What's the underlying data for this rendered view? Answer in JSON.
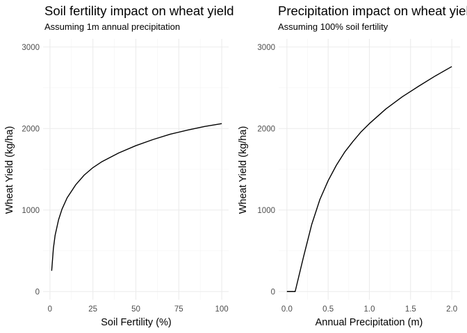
{
  "chart_data": [
    {
      "type": "line",
      "title": "Soil fertility impact on wheat yield",
      "subtitle": "Assuming 1m annual precipitation",
      "xlabel": "Soil Fertility (%)",
      "ylabel": "Wheat Yield (kg/ha)",
      "xlim": [
        -4,
        104
      ],
      "ylim": [
        -100,
        3100
      ],
      "x_ticks": [
        0,
        25,
        50,
        75,
        100
      ],
      "x_tick_labels": [
        "0",
        "25",
        "50",
        "75",
        "100"
      ],
      "y_ticks": [
        0,
        1000,
        2000,
        3000
      ],
      "y_tick_labels": [
        "0",
        "1000",
        "2000",
        "3000"
      ],
      "grid": true,
      "series": [
        {
          "x": [
            1,
            2,
            3,
            5,
            7,
            10,
            15,
            20,
            25,
            30,
            40,
            50,
            60,
            70,
            80,
            90,
            100
          ],
          "y": [
            255,
            530,
            690,
            880,
            1010,
            1150,
            1310,
            1430,
            1520,
            1590,
            1700,
            1790,
            1865,
            1930,
            1980,
            2025,
            2060
          ]
        }
      ]
    },
    {
      "type": "line",
      "title": "Precipitation impact on wheat yield",
      "subtitle": "Assuming 100% soil fertility",
      "xlabel": "Annual Precipitation (m)",
      "ylabel": "Wheat Yield (kg/ha)",
      "xlim": [
        -0.1,
        2.1
      ],
      "ylim": [
        -100,
        3100
      ],
      "x_ticks": [
        0,
        0.5,
        1,
        1.5,
        2
      ],
      "x_tick_labels": [
        "0.0",
        "0.5",
        "1.0",
        "1.5",
        "2.0"
      ],
      "y_ticks": [
        0,
        1000,
        2000,
        3000
      ],
      "y_tick_labels": [
        "0",
        "1000",
        "2000",
        "3000"
      ],
      "grid": true,
      "series": [
        {
          "x": [
            0,
            0.1,
            0.2,
            0.3,
            0.4,
            0.5,
            0.6,
            0.7,
            0.8,
            0.9,
            1.0,
            1.2,
            1.4,
            1.6,
            1.8,
            2.0
          ],
          "y": [
            0,
            0,
            420,
            820,
            1130,
            1360,
            1550,
            1710,
            1840,
            1960,
            2060,
            2240,
            2390,
            2520,
            2645,
            2760
          ]
        }
      ]
    }
  ]
}
